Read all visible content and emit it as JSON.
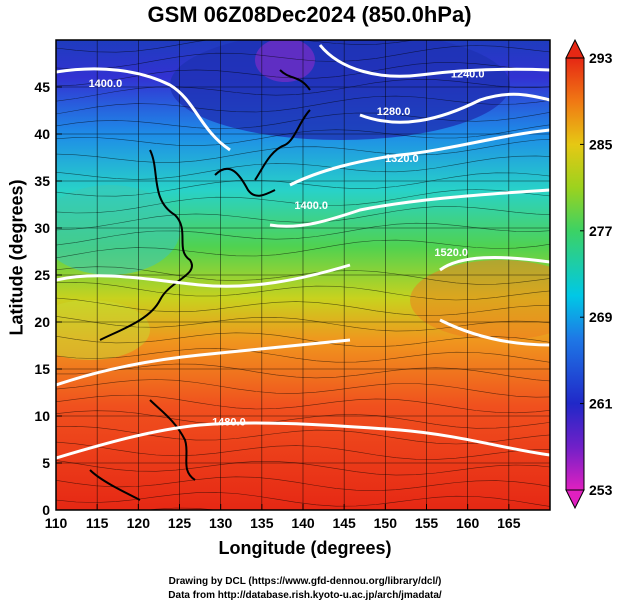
{
  "title": "GSM 06Z08Dec2024 (850.0hPa)",
  "xlabel": "Longitude (degrees)",
  "ylabel": "Latitude  (degrees)",
  "credit_line1": "Drawing by DCL (https://www.gfd-dennou.org/library/dcl/)",
  "credit_line2": "Data from http://database.rish.kyoto-u.ac.jp/arch/jmadata/",
  "map": {
    "lon_range": [
      110,
      170
    ],
    "lat_range": [
      0,
      50
    ],
    "lon_ticks": [
      110,
      115,
      120,
      125,
      130,
      135,
      140,
      145,
      150,
      155,
      160,
      165
    ],
    "lat_ticks": [
      0,
      5,
      10,
      15,
      20,
      25,
      30,
      35,
      40,
      45
    ],
    "field": "temperature (K)",
    "overlays": [
      "streamlines",
      "geopotential height contours",
      "coastlines"
    ],
    "contour_labels": [
      {
        "text": "1400.0",
        "lon": 116,
        "lat": 45
      },
      {
        "text": "1240.0",
        "lon": 160,
        "lat": 46
      },
      {
        "text": "1280.0",
        "lon": 151,
        "lat": 42
      },
      {
        "text": "1320.0",
        "lon": 152,
        "lat": 37
      },
      {
        "text": "1400.0",
        "lon": 141,
        "lat": 32
      },
      {
        "text": "1520.0",
        "lon": 158,
        "lat": 27
      },
      {
        "text": "1480.0",
        "lon": 131,
        "lat": 9
      }
    ]
  },
  "colorbar": {
    "ticks": [
      293,
      285,
      277,
      269,
      261,
      253
    ],
    "min": 253,
    "max": 293,
    "colors": [
      "#e020c0",
      "#3030c0",
      "#1e6ee8",
      "#00c8e6",
      "#3cd68c",
      "#8cd21e",
      "#d2dc14",
      "#f0a014",
      "#f05a1e",
      "#e62814"
    ]
  }
}
